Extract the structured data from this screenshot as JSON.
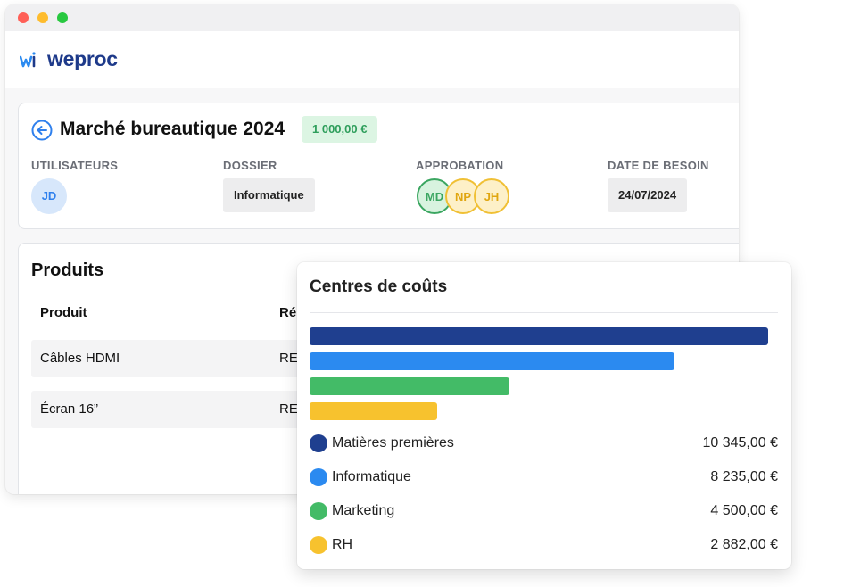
{
  "app": {
    "brand": "weproc"
  },
  "request": {
    "title": "Marché bureautique 2024",
    "amount": "1 000,00 €",
    "fields": {
      "users_label": "UTILISATEURS",
      "users": [
        "JD"
      ],
      "folder_label": "DOSSIER",
      "folder_value": "Informatique",
      "approval_label": "APPROBATION",
      "approvers": [
        "MD",
        "NP",
        "JH"
      ],
      "need_date_label": "DATE DE BESOIN",
      "need_date_value": "24/07/2024"
    }
  },
  "products": {
    "title": "Produits",
    "columns": [
      "Produit",
      "Ré"
    ],
    "rows": [
      {
        "product": "Câbles HDMI",
        "ref": "RE"
      },
      {
        "product": "Écran 16”",
        "ref": "RE"
      }
    ]
  },
  "cost_centers": {
    "title": "Centres de coûts",
    "items": [
      {
        "name": "Matières premières",
        "amount": "10 345,00 €",
        "value": 10345,
        "color": "#1f3f8f"
      },
      {
        "name": "Informatique",
        "amount": "8 235,00 €",
        "value": 8235,
        "color": "#2b8af0"
      },
      {
        "name": "Marketing",
        "amount": "4 500,00 €",
        "value": 4500,
        "color": "#43bb67"
      },
      {
        "name": "RH",
        "amount": "2 882,00 €",
        "value": 2882,
        "color": "#f7c22e"
      }
    ]
  },
  "colors": {
    "brand": "#1e3a8a",
    "accent_blue": "#2f80ed",
    "approved_green": "#3ba661",
    "pending_yellow": "#f0c035",
    "badge_bg": "#dcf5e3",
    "badge_text": "#2e9e5b"
  },
  "icons": {
    "logo": "weproc-logo-icon",
    "back": "arrow-left-circle-icon"
  }
}
